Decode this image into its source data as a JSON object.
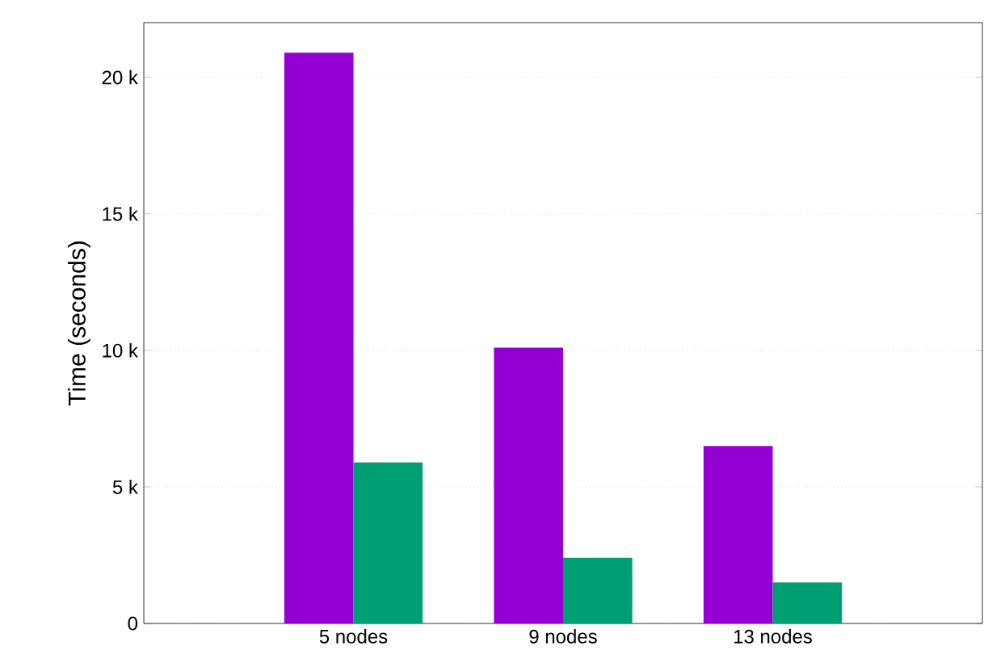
{
  "chart_data": {
    "type": "bar",
    "ylabel": "Time (seconds)",
    "categories": [
      "5 nodes",
      "9 nodes",
      "13 nodes"
    ],
    "series": [
      {
        "color": "#9400d3",
        "values": [
          20900,
          10100,
          6500
        ]
      },
      {
        "color": "#009e73",
        "values": [
          5900,
          2400,
          1500
        ]
      }
    ],
    "ylim": [
      0,
      22000
    ],
    "yticks": [
      0,
      {
        "value": 5000,
        "label": "5 k"
      },
      {
        "value": 10000,
        "label": "10 k"
      },
      {
        "value": 15000,
        "label": "15 k"
      },
      {
        "value": 20000,
        "label": "20 k"
      }
    ],
    "grid": "y"
  }
}
